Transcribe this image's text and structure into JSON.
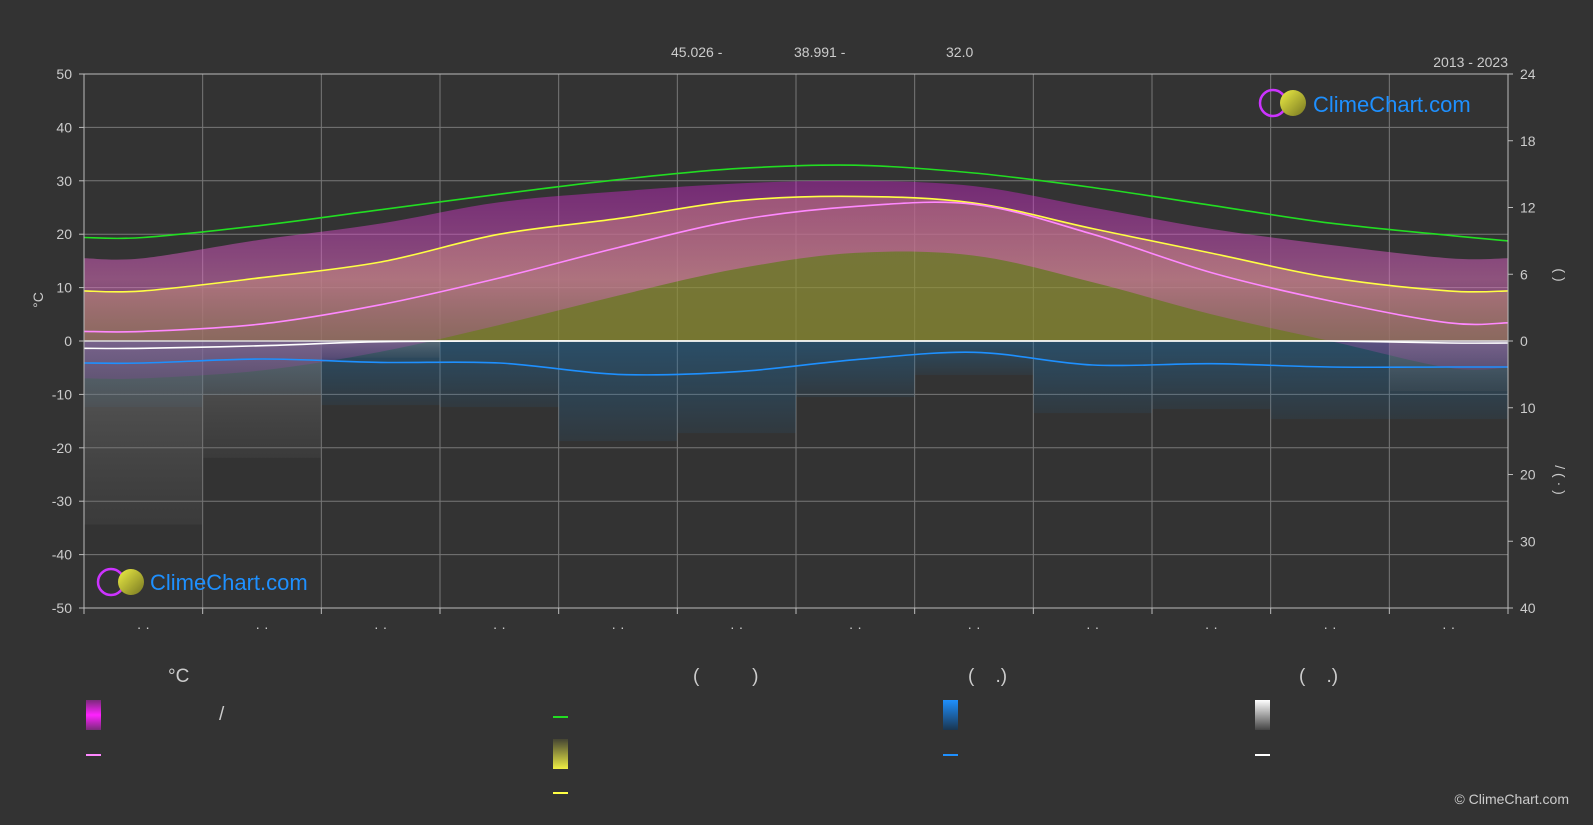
{
  "header": {
    "period": "2013 - 2023",
    "coords": [
      "45.026 -",
      "38.991 -",
      "32.0"
    ]
  },
  "logo_text": "ClimeChart.com",
  "copyright": "© ClimeChart.com",
  "colors": {
    "background": "#333333",
    "grid": "#777777",
    "temp_band": "#e040c8",
    "daylight": "#22dd22",
    "sunshine_band": "#c8c832",
    "sunshine_line": "#ffff44",
    "temp_line": "#ff88ff",
    "rain_line": "#1e90ff",
    "rain_bar": "#1f77b4",
    "snow_line": "#ffffff",
    "snow_bar": "#999999",
    "logo_text": "#1e90ff"
  },
  "legend": {
    "temp_heading": "°C",
    "sun_heading": "(          )",
    "rain_heading": "(    .)",
    "snow_heading": "(    .)",
    "temp_slash": "/"
  },
  "chart_data": {
    "type": "area",
    "x_ticks": [
      "· ·",
      "· ·",
      "· ·",
      "· ·",
      "· ·",
      "· ·",
      "· ·",
      "· ·",
      "· ·",
      "· ·",
      "· ·",
      "· ·"
    ],
    "ylabel_left": "°C",
    "ylim_left": [
      -50,
      50
    ],
    "yticks_left": [
      50,
      40,
      30,
      20,
      10,
      0,
      -10,
      -20,
      -30,
      -40,
      -50
    ],
    "ylim_right_top": [
      0,
      24
    ],
    "yticks_right_top": [
      24,
      18,
      12,
      6,
      0
    ],
    "ylim_right_bottom": [
      0,
      40
    ],
    "yticks_right_bottom": [
      10,
      20,
      30,
      40
    ],
    "right_label_top": "(    )",
    "right_label_bottom": "/ (  ·  )",
    "grid": true,
    "months": 12,
    "series": [
      {
        "key": "daylight",
        "unit": "hours",
        "values": [
          9.3,
          10.4,
          11.8,
          13.2,
          14.5,
          15.5,
          15.8,
          15.1,
          13.8,
          12.2,
          10.6,
          9.5,
          9.0
        ]
      },
      {
        "key": "sunshine",
        "unit": "hours",
        "values": [
          4.5,
          5.7,
          7.1,
          9.6,
          11.0,
          12.6,
          13.0,
          12.4,
          10.1,
          7.9,
          5.7,
          4.5,
          4.5
        ]
      },
      {
        "key": "temp_mean",
        "unit": "°C",
        "values": [
          1.8,
          3.2,
          6.8,
          11.8,
          17.5,
          22.6,
          25.2,
          25.6,
          20.0,
          12.8,
          7.5,
          3.4,
          3.4
        ]
      },
      {
        "key": "temp_max",
        "unit": "°C",
        "values": [
          15.5,
          19.0,
          22.0,
          26.0,
          28.0,
          29.5,
          30.0,
          29.0,
          25.0,
          21.0,
          18.0,
          15.5,
          15.5
        ]
      },
      {
        "key": "temp_min",
        "unit": "°C",
        "values": [
          -7.0,
          -5.5,
          -2.0,
          3.0,
          8.5,
          13.5,
          16.5,
          16.0,
          11.0,
          5.0,
          0.0,
          -5.0,
          -5.0
        ]
      },
      {
        "key": "rain_daily",
        "unit": "mm",
        "values": [
          3.3,
          2.7,
          3.2,
          3.3,
          5.0,
          4.6,
          2.8,
          1.7,
          3.6,
          3.4,
          3.9,
          3.9,
          3.9
        ]
      },
      {
        "key": "snow_daily",
        "unit": "cm",
        "values": [
          1.1,
          0.7,
          0.1,
          0,
          0,
          0,
          0,
          0,
          0,
          0,
          0,
          0.3,
          0.3
        ]
      }
    ]
  }
}
